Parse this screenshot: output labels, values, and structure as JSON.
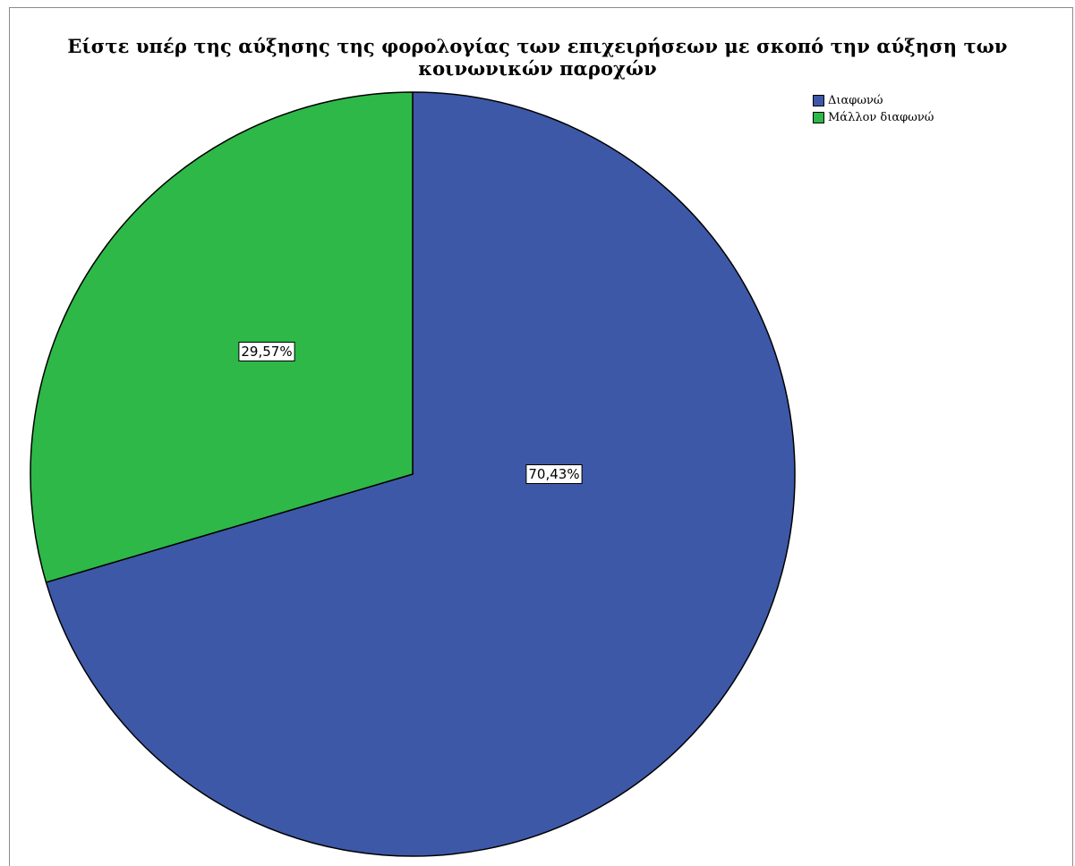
{
  "chart_data": {
    "type": "pie",
    "title": "Είστε υπέρ της αύξησης της φορολογίας των επιχειρήσεων με σκοπό την αύξηση των κοινωνικών παροχών",
    "categories": [
      "Διαφωνώ",
      "Μάλλον διαφωνώ"
    ],
    "values": [
      70.43,
      29.57
    ],
    "value_labels": [
      "70,43%",
      "29,57%"
    ],
    "colors": [
      "#3e58a8",
      "#2eb848"
    ],
    "legend_placement": "top-right",
    "start_angle": "12 o'clock",
    "direction": "clockwise"
  }
}
